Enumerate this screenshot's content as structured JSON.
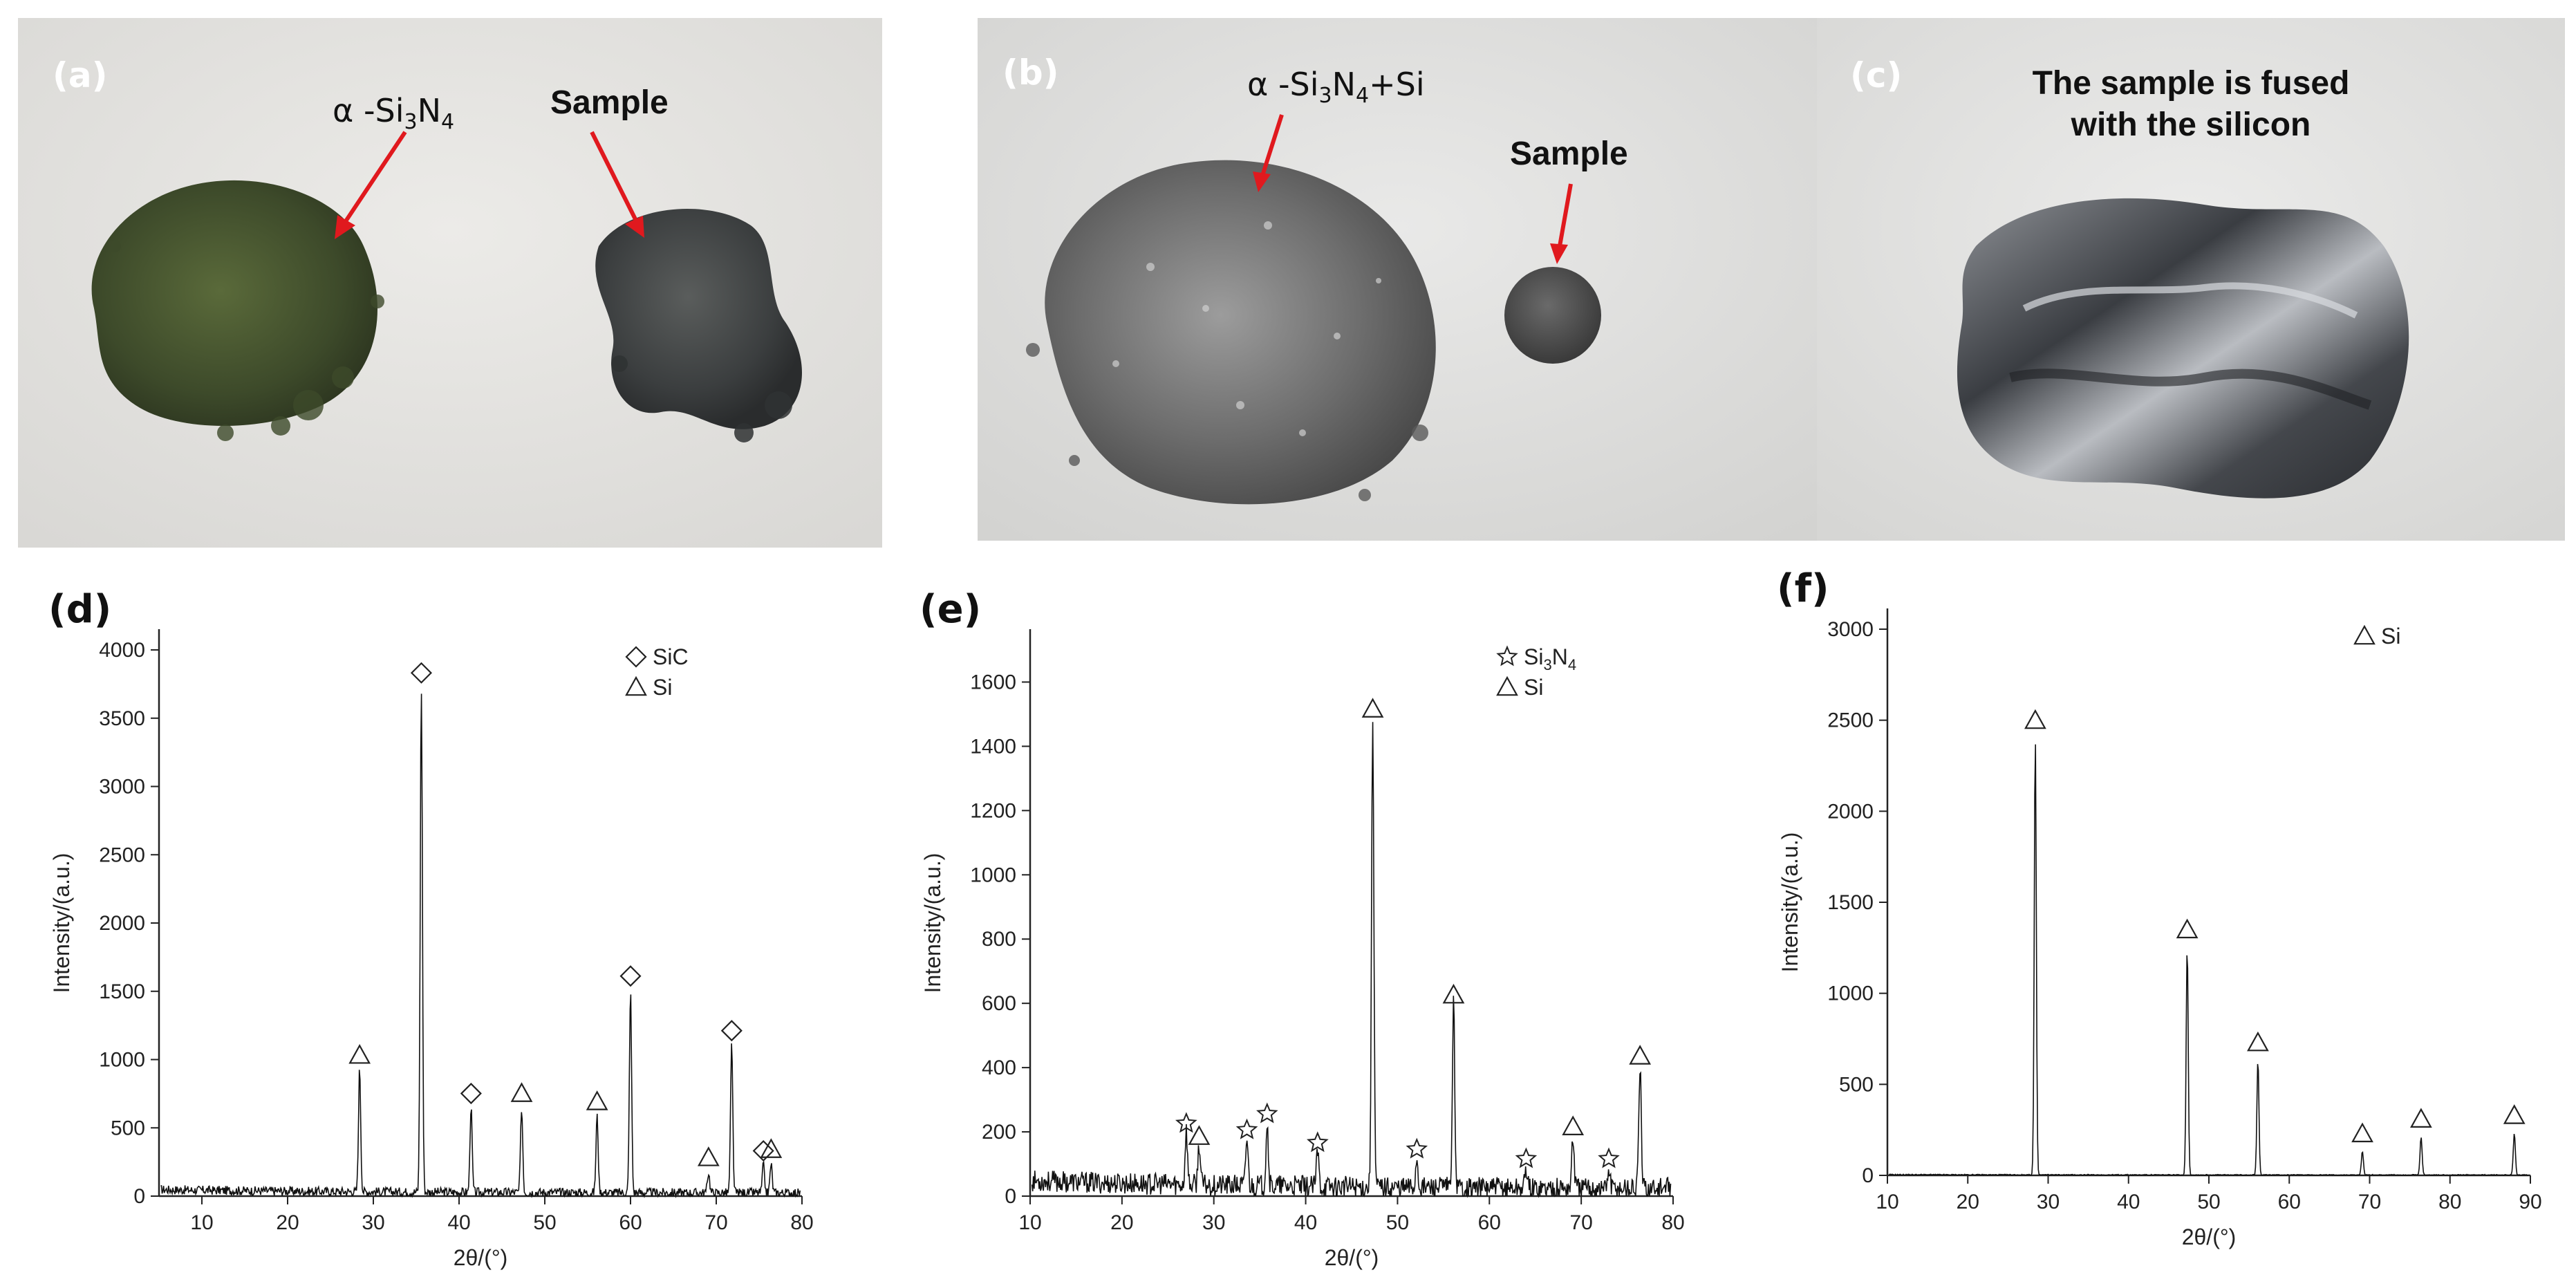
{
  "photos": {
    "a": {
      "letter": "(a)",
      "label_si3n4_prefix": "α -Si",
      "label_si3n4_sub1": "3",
      "label_si3n4_mid": "N",
      "label_si3n4_sub2": "4",
      "label_sample": "Sample"
    },
    "b": {
      "letter": "(b)",
      "label_mix_prefix": "α -Si",
      "label_mix_sub1": "3",
      "label_mix_mid": "N",
      "label_mix_sub2": "4",
      "label_mix_suffix": "+Si",
      "label_sample": "Sample"
    },
    "c": {
      "letter": "(c)",
      "caption_line1": "The sample is fused",
      "caption_line2": "with the silicon"
    }
  },
  "colors": {
    "arrow": "#e0191e",
    "trace": "#111111",
    "axis": "#222222"
  },
  "chart_data": [
    {
      "panel": "(d)",
      "type": "line",
      "xlabel": "2θ/(°)",
      "ylabel": "Intensity/(a.u.)",
      "xlim": [
        5,
        80
      ],
      "ylim": [
        0,
        4000
      ],
      "xticks": [
        10,
        20,
        30,
        40,
        50,
        60,
        70,
        80
      ],
      "yticks": [
        0,
        500,
        1000,
        1500,
        2000,
        2500,
        3000,
        3500,
        4000
      ],
      "legend": [
        {
          "marker": "diamond",
          "label": "SiC"
        },
        {
          "marker": "triangle",
          "label": "Si"
        }
      ],
      "peaks": [
        {
          "x": 28.4,
          "y": 900,
          "marker": "triangle"
        },
        {
          "x": 35.6,
          "y": 3700,
          "marker": "diamond"
        },
        {
          "x": 41.4,
          "y": 620,
          "marker": "diamond"
        },
        {
          "x": 47.3,
          "y": 620,
          "marker": "triangle"
        },
        {
          "x": 56.1,
          "y": 560,
          "marker": "triangle"
        },
        {
          "x": 60.0,
          "y": 1480,
          "marker": "diamond"
        },
        {
          "x": 69.1,
          "y": 150,
          "marker": "triangle"
        },
        {
          "x": 71.8,
          "y": 1080,
          "marker": "diamond"
        },
        {
          "x": 75.5,
          "y": 200,
          "marker": "diamond"
        },
        {
          "x": 76.4,
          "y": 210,
          "marker": "triangle"
        }
      ],
      "baseline": 60
    },
    {
      "panel": "(e)",
      "type": "line",
      "xlabel": "2θ/(°)",
      "ylabel": "Intensity/(a.u.)",
      "xlim": [
        10,
        80
      ],
      "ylim": [
        0,
        1700
      ],
      "xticks": [
        10,
        20,
        30,
        40,
        50,
        60,
        70,
        80
      ],
      "yticks": [
        0,
        200,
        400,
        600,
        800,
        1000,
        1200,
        1400,
        1600
      ],
      "legend": [
        {
          "marker": "star",
          "label": "Si",
          "sub": "3",
          "label2": "N",
          "sub2": "4"
        },
        {
          "marker": "triangle",
          "label": "Si"
        }
      ],
      "peaks": [
        {
          "x": 27.0,
          "y": 170,
          "marker": "star"
        },
        {
          "x": 28.4,
          "y": 130,
          "marker": "triangle"
        },
        {
          "x": 33.6,
          "y": 150,
          "marker": "star"
        },
        {
          "x": 35.8,
          "y": 200,
          "marker": "star"
        },
        {
          "x": 41.3,
          "y": 110,
          "marker": "star"
        },
        {
          "x": 47.3,
          "y": 1460,
          "marker": "triangle"
        },
        {
          "x": 52.1,
          "y": 90,
          "marker": "star"
        },
        {
          "x": 56.1,
          "y": 570,
          "marker": "triangle"
        },
        {
          "x": 64.0,
          "y": 60,
          "marker": "star"
        },
        {
          "x": 69.1,
          "y": 160,
          "marker": "triangle"
        },
        {
          "x": 73.0,
          "y": 60,
          "marker": "star"
        },
        {
          "x": 76.4,
          "y": 380,
          "marker": "triangle"
        }
      ],
      "baseline": 60
    },
    {
      "panel": "(f)",
      "type": "line",
      "xlabel": "2θ/(°)",
      "ylabel": "Intensity/(a.u.)",
      "xlim": [
        10,
        90
      ],
      "ylim": [
        0,
        3000
      ],
      "xticks": [
        10,
        20,
        30,
        40,
        50,
        60,
        70,
        80,
        90
      ],
      "yticks": [
        0,
        500,
        1000,
        1500,
        2000,
        2500,
        3000
      ],
      "legend": [
        {
          "marker": "triangle",
          "label": "Si"
        }
      ],
      "peaks": [
        {
          "x": 28.4,
          "y": 2400,
          "marker": "triangle"
        },
        {
          "x": 47.3,
          "y": 1250,
          "marker": "triangle"
        },
        {
          "x": 56.1,
          "y": 630,
          "marker": "triangle"
        },
        {
          "x": 69.1,
          "y": 130,
          "marker": "triangle"
        },
        {
          "x": 76.4,
          "y": 210,
          "marker": "triangle"
        },
        {
          "x": 88.0,
          "y": 230,
          "marker": "triangle"
        }
      ],
      "baseline": 5
    }
  ]
}
